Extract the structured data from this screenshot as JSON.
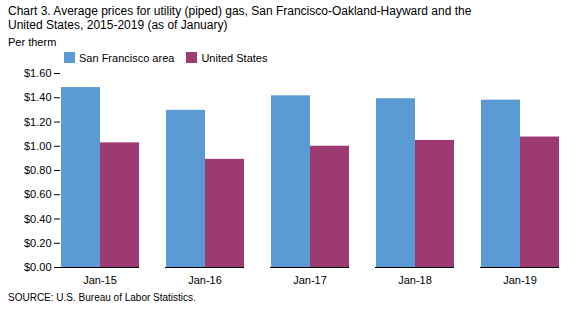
{
  "chart_data": {
    "type": "bar",
    "title": "Chart 3. Average prices for utility (piped) gas, San Francisco-Oakland-Hayward and the",
    "subtitle": "United States, 2015-2019  (as of January)",
    "ylabel": "Per therm",
    "source": "SOURCE: U.S. Bureau of Labor Statistics.",
    "categories": [
      "Jan-15",
      "Jan-16",
      "Jan-17",
      "Jan-18",
      "Jan-19"
    ],
    "series": [
      {
        "name": "San Francisco area",
        "color": "#5B9BD5",
        "values": [
          1.484,
          1.296,
          1.416,
          1.392,
          1.38
        ]
      },
      {
        "name": "United States",
        "color": "#9E3A72",
        "values": [
          1.028,
          0.892,
          1.0,
          1.048,
          1.076
        ]
      }
    ],
    "ylim": [
      0.0,
      1.6
    ],
    "yticks": [
      {
        "value": 0.0,
        "label": "$0.00"
      },
      {
        "value": 0.2,
        "label": "$0.20"
      },
      {
        "value": 0.4,
        "label": "$0.40"
      },
      {
        "value": 0.6,
        "label": "$0.60"
      },
      {
        "value": 0.8,
        "label": "$0.80"
      },
      {
        "value": 1.0,
        "label": "$1.00"
      },
      {
        "value": 1.2,
        "label": "$1.20"
      },
      {
        "value": 1.4,
        "label": "$1.40"
      },
      {
        "value": 1.6,
        "label": "$1.60"
      }
    ],
    "grid": false,
    "legend": "upper left"
  }
}
